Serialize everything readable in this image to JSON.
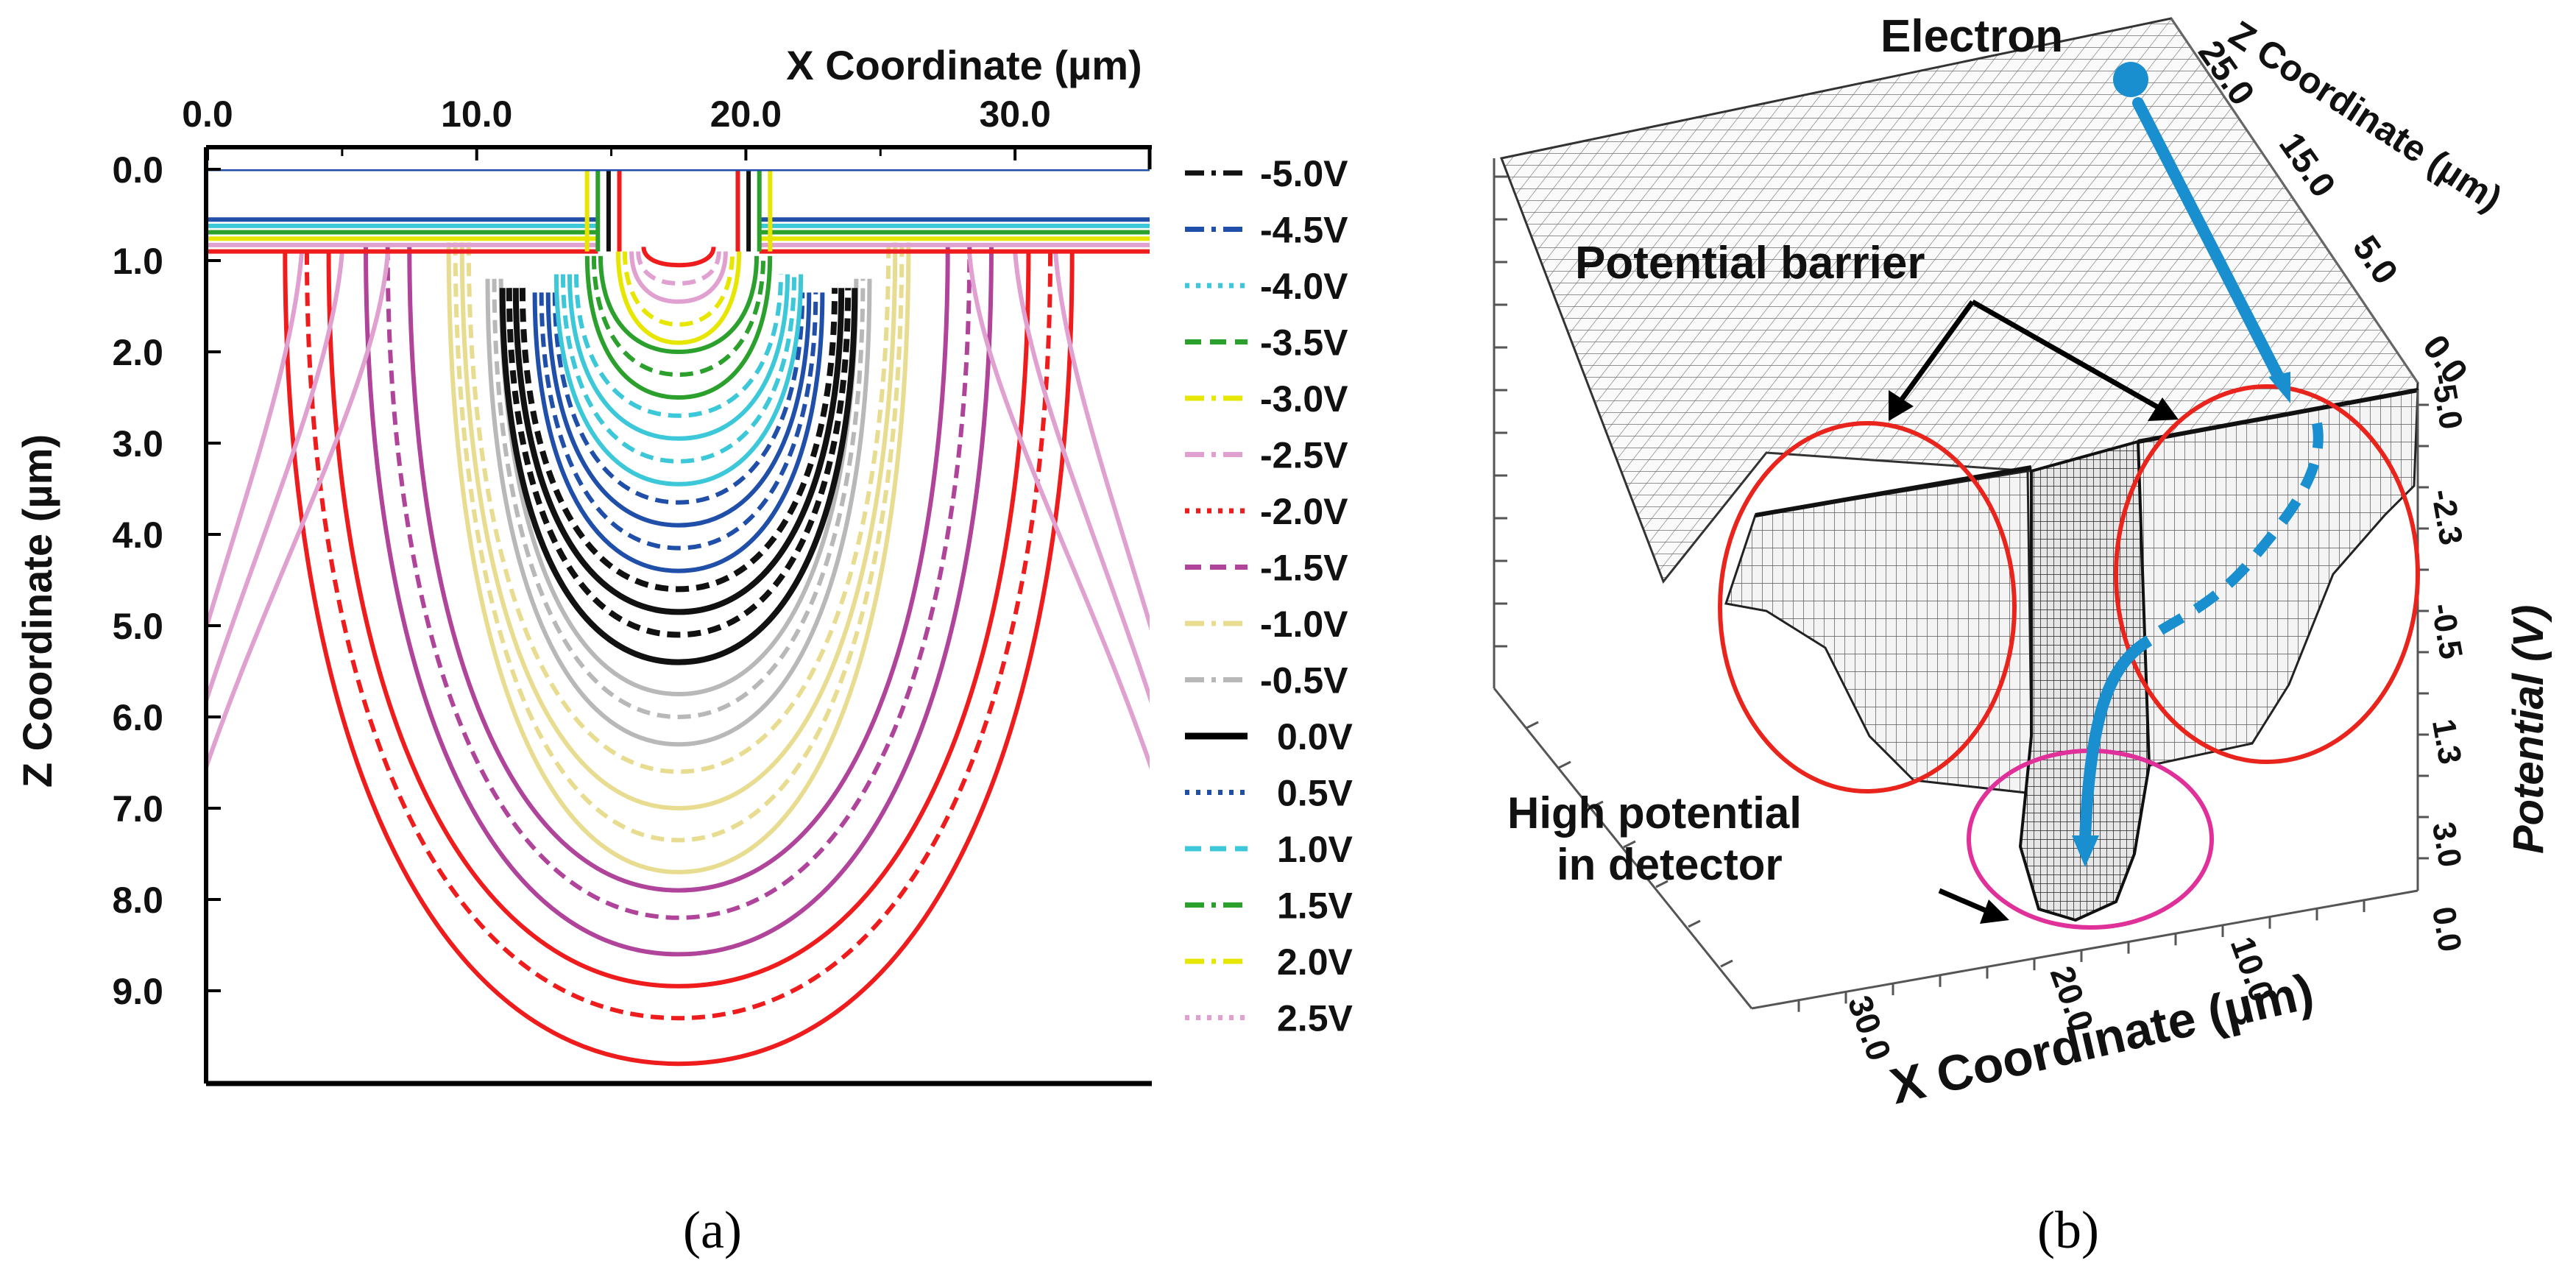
{
  "chart_data": [
    {
      "panel": "a",
      "type": "contour",
      "title": "",
      "xlabel": "X Coordinate (µm)",
      "ylabel": "Z Coordinate (µm)",
      "xlim": [
        0,
        35
      ],
      "ylim": [
        0,
        10
      ],
      "x_ticks": [
        "0.0",
        "10.0",
        "20.0",
        "30.0"
      ],
      "x_tick_values": [
        0,
        10,
        20,
        30
      ],
      "y_ticks": [
        "0.0",
        "1.0",
        "2.0",
        "3.0",
        "4.0",
        "5.0",
        "6.0",
        "7.0",
        "8.0",
        "9.0"
      ],
      "y_tick_values": [
        0,
        1,
        2,
        3,
        4,
        5,
        6,
        7,
        8,
        9
      ],
      "legend": [
        {
          "label": "-5.0V",
          "color": "#111111",
          "dash": "dashdot"
        },
        {
          "label": "-4.5V",
          "color": "#1f4fa8",
          "dash": "dashdot"
        },
        {
          "label": "-4.0V",
          "color": "#3cc8d8",
          "dash": "dot"
        },
        {
          "label": "-3.5V",
          "color": "#2ca02c",
          "dash": "dash"
        },
        {
          "label": "-3.0V",
          "color": "#e6e600",
          "dash": "dashdot"
        },
        {
          "label": "-2.5V",
          "color": "#e0a0d0",
          "dash": "dashdot"
        },
        {
          "label": "-2.0V",
          "color": "#ee1c1c",
          "dash": "dot"
        },
        {
          "label": "-1.5V",
          "color": "#b0449a",
          "dash": "dash"
        },
        {
          "label": "-1.0V",
          "color": "#e8dc90",
          "dash": "dashdot"
        },
        {
          "label": "-0.5V",
          "color": "#b8b8b8",
          "dash": "dashdot"
        },
        {
          "label": "0.0V",
          "color": "#000000",
          "dash": "solid"
        },
        {
          "label": "0.5V",
          "color": "#1f4fa8",
          "dash": "dot"
        },
        {
          "label": "1.0V",
          "color": "#3cc8d8",
          "dash": "dash"
        },
        {
          "label": "1.5V",
          "color": "#2ca02c",
          "dash": "dashdot"
        },
        {
          "label": "2.0V",
          "color": "#e6e600",
          "dash": "dashdot"
        },
        {
          "label": "2.5V",
          "color": "#e0a0d0",
          "dash": "dot"
        }
      ],
      "contour_groups": [
        {
          "name": "barrier",
          "color": "#111111",
          "depths": [
            5.4,
            5.1,
            4.85,
            4.6
          ]
        },
        {
          "name": "blue",
          "color": "#1f4fa8",
          "depths": [
            4.4,
            4.15,
            3.9,
            3.65
          ]
        },
        {
          "name": "cyan",
          "color": "#3cc8d8",
          "depths": [
            3.45,
            3.2,
            2.95,
            2.7
          ]
        },
        {
          "name": "green",
          "color": "#2ca02c",
          "depths": [
            2.5,
            2.25,
            2.0
          ]
        },
        {
          "name": "yellow",
          "color": "#e6e600",
          "depths": [
            1.9,
            1.7
          ]
        },
        {
          "name": "pink-core",
          "color": "#e0a0d0",
          "depths": [
            1.45,
            1.25
          ]
        },
        {
          "name": "red-core",
          "color": "#ee1c1c",
          "depths": [
            1.05
          ]
        },
        {
          "name": "gray",
          "color": "#b8b8b8",
          "depths": [
            6.3,
            6.0,
            5.75
          ]
        },
        {
          "name": "khaki",
          "color": "#e8dc90",
          "depths": [
            7.7,
            7.35,
            7.0,
            6.6
          ]
        },
        {
          "name": "magenta",
          "color": "#b0449a",
          "depths": [
            8.6,
            8.2,
            7.9
          ]
        },
        {
          "name": "red",
          "color": "#ee1c1c",
          "depths": [
            9.8,
            9.3,
            8.95
          ]
        }
      ],
      "caption": "(a)"
    },
    {
      "panel": "b",
      "type": "surface3d",
      "title": "",
      "xlabel": "X Coordinate (µm)",
      "ylabel": "Z Coordinate (µm)",
      "zlabel": "Potential (V)",
      "x_ticks": [
        "30.0",
        "20.0",
        "10.0"
      ],
      "z_ticks": [
        "25.0",
        "15.0",
        "5.0",
        "0.0"
      ],
      "potential_ticks": [
        "-5.0",
        "-2.3",
        "-0.5",
        "1.3",
        "3.0",
        "0.0"
      ],
      "annotations": {
        "electron": "Electron",
        "barrier": "Potential barrier",
        "high_potential_line1": "High potential",
        "high_potential_line2": "in detector"
      },
      "caption": "(b)"
    }
  ]
}
